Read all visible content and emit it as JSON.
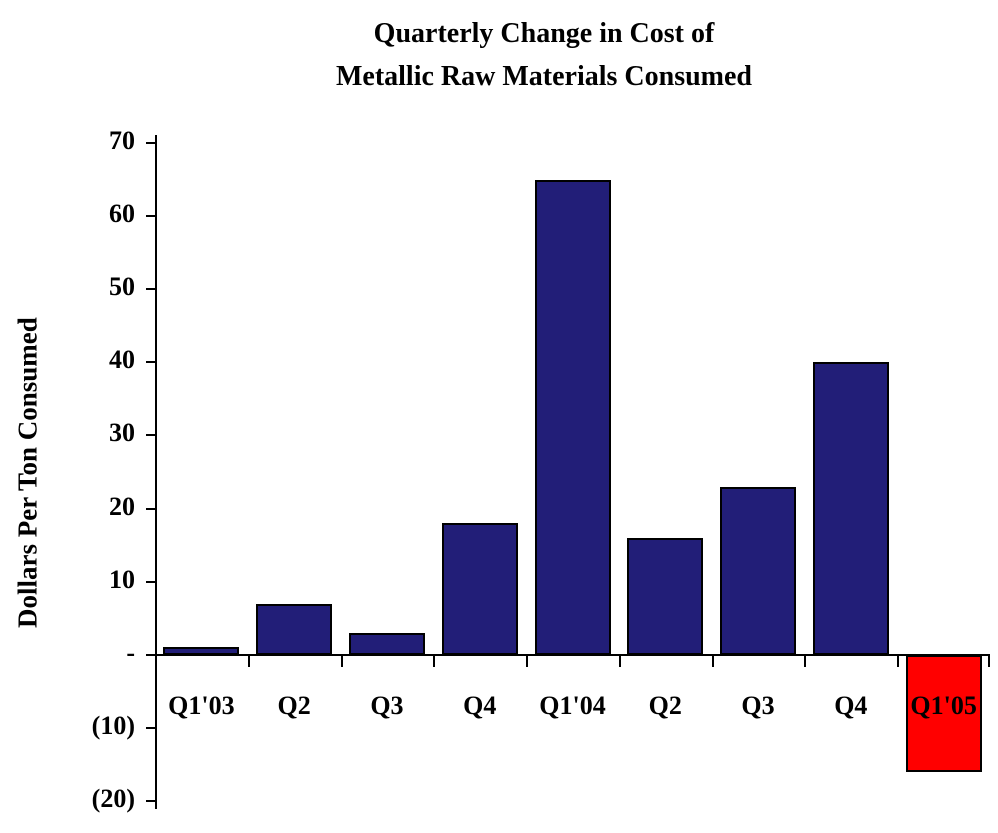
{
  "chart_data": {
    "type": "bar",
    "title": "Quarterly Change in Cost of Metallic Raw Materials Consumed",
    "title_lines": [
      "Quarterly Change in Cost of",
      "Metallic Raw Materials Consumed"
    ],
    "ylabel": "Dollars Per Ton Consumed",
    "xlabel": "",
    "categories": [
      "Q1'03",
      "Q2",
      "Q3",
      "Q4",
      "Q1'04",
      "Q2",
      "Q3",
      "Q4",
      "Q1'05"
    ],
    "values": [
      1,
      7,
      3,
      18,
      65,
      16,
      23,
      40,
      -16
    ],
    "ylim": [
      -20,
      70
    ],
    "ytick_interval": 10,
    "ytick_values": [
      70,
      60,
      50,
      40,
      30,
      20,
      10,
      0,
      -10,
      -20
    ],
    "ytick_labels": [
      "70",
      "60",
      "50",
      "40",
      "30",
      "20",
      "10",
      "-",
      "(10)",
      "(20)"
    ],
    "grid": false,
    "legend": "none",
    "colors": {
      "positive_bar": "#221E78",
      "negative_bar": "#FF0000",
      "bar_border": "#000000",
      "axis": "#000000",
      "text": "#000000",
      "background": "#FFFFFF"
    }
  }
}
